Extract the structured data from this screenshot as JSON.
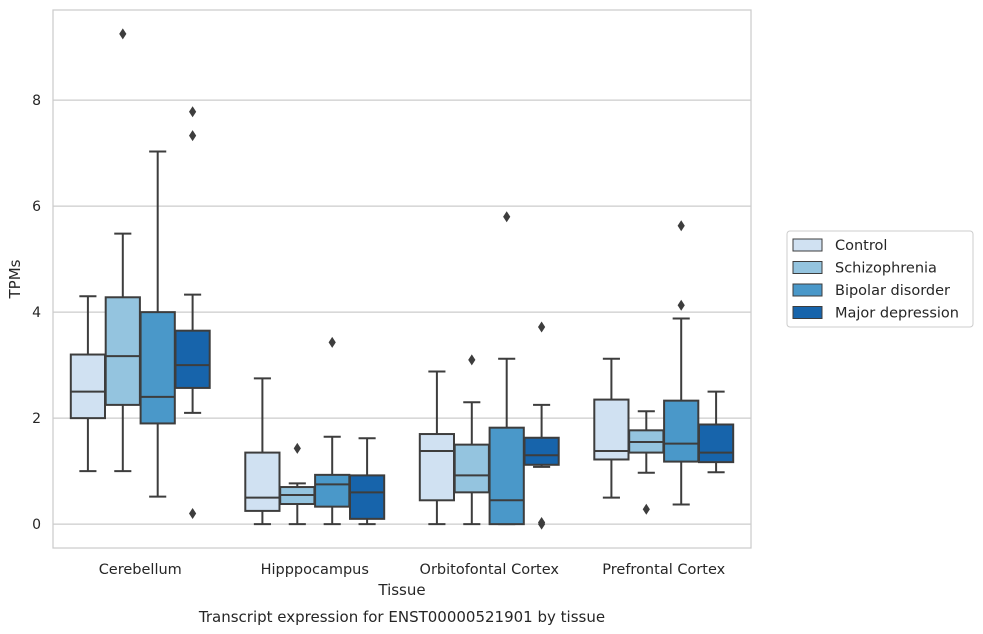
{
  "chart_data": {
    "type": "box",
    "title": "Transcript expression for ENST00000521901 by tissue",
    "xlabel": "Tissue",
    "ylabel": "TPMs",
    "ylim": [
      -0.45,
      9.7
    ],
    "yticks": [
      0,
      2,
      4,
      6,
      8
    ],
    "grid": "horizontal",
    "legend_position": "right",
    "categories": [
      "Cerebellum",
      "Hipppocampus",
      "Orbitofontal Cortex",
      "Prefrontal Cortex"
    ],
    "series": [
      {
        "name": "Control",
        "color": "#d0e1f2",
        "boxes": [
          {
            "whislo": 1.0,
            "q1": 2.0,
            "med": 2.5,
            "q3": 3.2,
            "whishi": 4.3,
            "fliers": []
          },
          {
            "whislo": 0.0,
            "q1": 0.25,
            "med": 0.5,
            "q3": 1.35,
            "whishi": 2.75,
            "fliers": []
          },
          {
            "whislo": 0.0,
            "q1": 0.45,
            "med": 1.38,
            "q3": 1.7,
            "whishi": 2.88,
            "fliers": []
          },
          {
            "whislo": 0.5,
            "q1": 1.22,
            "med": 1.38,
            "q3": 2.35,
            "whishi": 3.12,
            "fliers": []
          }
        ]
      },
      {
        "name": "Schizophrenia",
        "color": "#94c4df",
        "boxes": [
          {
            "whislo": 1.0,
            "q1": 2.25,
            "med": 3.17,
            "q3": 4.28,
            "whishi": 5.48,
            "fliers": [
              9.25
            ]
          },
          {
            "whislo": 0.0,
            "q1": 0.38,
            "med": 0.55,
            "q3": 0.7,
            "whishi": 0.77,
            "fliers": [
              1.43
            ]
          },
          {
            "whislo": 0.0,
            "q1": 0.6,
            "med": 0.92,
            "q3": 1.5,
            "whishi": 2.3,
            "fliers": [
              3.1
            ]
          },
          {
            "whislo": 0.97,
            "q1": 1.35,
            "med": 1.55,
            "q3": 1.77,
            "whishi": 2.13,
            "fliers": [
              0.28
            ]
          }
        ]
      },
      {
        "name": "Bipolar disorder",
        "color": "#4a98c9",
        "boxes": [
          {
            "whislo": 0.52,
            "q1": 1.9,
            "med": 2.4,
            "q3": 4.0,
            "whishi": 7.03,
            "fliers": []
          },
          {
            "whislo": 0.0,
            "q1": 0.33,
            "med": 0.75,
            "q3": 0.93,
            "whishi": 1.65,
            "fliers": [
              3.43
            ]
          },
          {
            "whislo": 0.0,
            "q1": 0.0,
            "med": 0.45,
            "q3": 1.82,
            "whishi": 3.12,
            "fliers": [
              5.8
            ]
          },
          {
            "whislo": 0.37,
            "q1": 1.18,
            "med": 1.52,
            "q3": 2.33,
            "whishi": 3.88,
            "fliers": [
              4.13,
              5.63
            ]
          }
        ]
      },
      {
        "name": "Major depression",
        "color": "#1764ab",
        "boxes": [
          {
            "whislo": 2.1,
            "q1": 2.57,
            "med": 3.0,
            "q3": 3.65,
            "whishi": 4.33,
            "fliers": [
              7.78,
              7.33,
              0.2
            ]
          },
          {
            "whislo": 0.0,
            "q1": 0.1,
            "med": 0.6,
            "q3": 0.92,
            "whishi": 1.62,
            "fliers": []
          },
          {
            "whislo": 1.08,
            "q1": 1.12,
            "med": 1.3,
            "q3": 1.63,
            "whishi": 2.25,
            "fliers": [
              3.72,
              0.0,
              0.03
            ]
          },
          {
            "whislo": 0.98,
            "q1": 1.17,
            "med": 1.35,
            "q3": 1.88,
            "whishi": 2.5,
            "fliers": []
          }
        ]
      }
    ]
  }
}
